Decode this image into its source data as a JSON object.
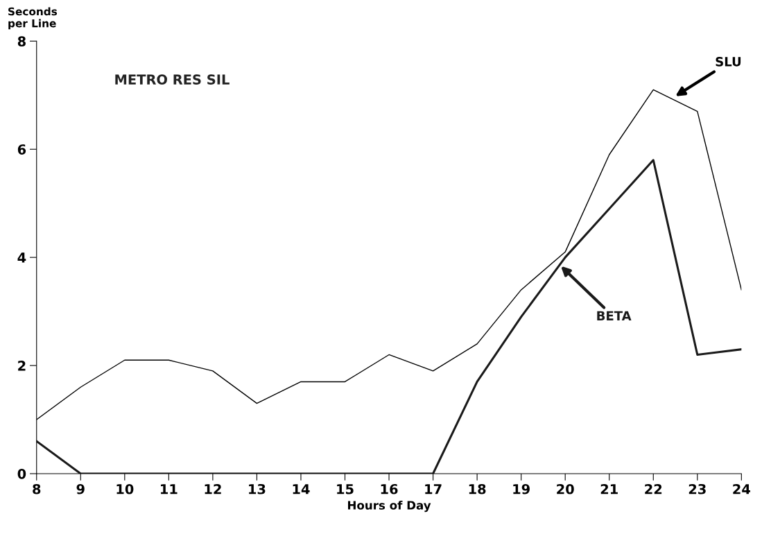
{
  "chart_data": {
    "type": "line",
    "xlabel": "Hours of Day",
    "ylabel": "Seconds\nper Line",
    "annotations": [
      "METRO RES SIL"
    ],
    "x": [
      8,
      9,
      10,
      11,
      12,
      13,
      14,
      15,
      16,
      17,
      18,
      19,
      20,
      21,
      22,
      23,
      24
    ],
    "series": [
      {
        "name": "SLU",
        "color": "#000000",
        "values": [
          1.0,
          1.6,
          2.1,
          2.1,
          1.9,
          1.3,
          1.7,
          1.7,
          2.2,
          1.9,
          2.4,
          3.4,
          4.1,
          5.9,
          7.1,
          6.7,
          3.4
        ]
      },
      {
        "name": "BETA",
        "color": "#1a1a1a",
        "values": [
          0.6,
          0,
          0,
          0,
          0,
          0,
          0,
          0,
          0,
          0,
          1.7,
          2.9,
          4.0,
          4.9,
          5.8,
          2.2,
          2.3
        ]
      }
    ],
    "xlim": [
      8,
      24
    ],
    "ylim": [
      0,
      8
    ],
    "xticks": [
      8,
      9,
      10,
      11,
      12,
      13,
      14,
      15,
      16,
      17,
      18,
      19,
      20,
      21,
      22,
      23,
      24
    ],
    "yticks": [
      0,
      2,
      4,
      6,
      8
    ],
    "grid": false,
    "legend": false,
    "marker": "none",
    "line_style": "solid"
  }
}
